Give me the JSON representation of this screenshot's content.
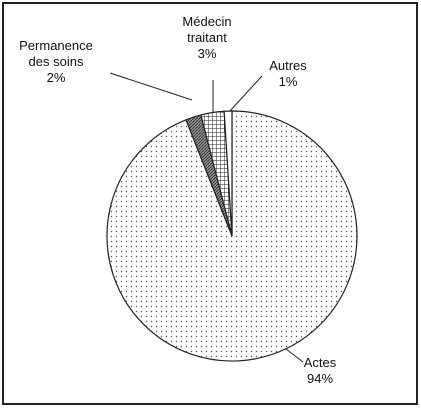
{
  "chart_data": {
    "type": "pie",
    "categories": [
      "Actes",
      "Permanence des soins",
      "Médecin traitant",
      "Autres"
    ],
    "values": [
      94,
      2,
      3,
      1
    ],
    "value_labels": [
      "94%",
      "2%",
      "3%",
      "1%"
    ]
  }
}
